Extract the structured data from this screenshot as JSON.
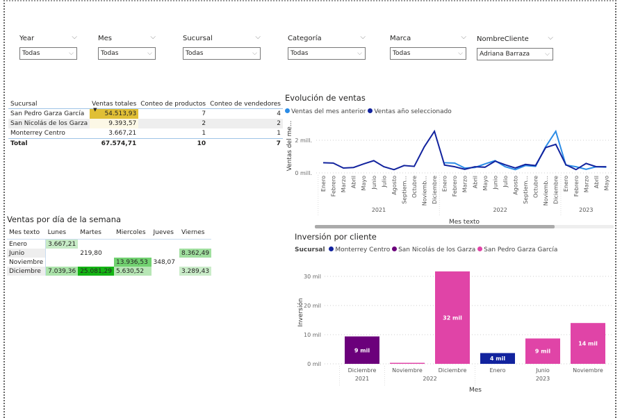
{
  "filters": [
    {
      "label": "Year",
      "value": "Todas"
    },
    {
      "label": "Mes",
      "value": "Todas"
    },
    {
      "label": "Sucursal",
      "value": "Todas"
    },
    {
      "label": "Categoría",
      "value": "Todas"
    },
    {
      "label": "Marca",
      "value": "Todas"
    },
    {
      "label": "NombreCliente",
      "value": "Adriana Barraza"
    }
  ],
  "sales_table": {
    "headers": [
      "Sucursal",
      "Ventas totales",
      "Conteo de productos",
      "Conteo de vendedores"
    ],
    "rows": [
      [
        "San Pedro Garza García",
        "54.513,93",
        "7",
        "4"
      ],
      [
        "San Nicolás de los Garza",
        "9.393,57",
        "2",
        "2"
      ],
      [
        "Monterrey Centro",
        "3.667,21",
        "1",
        "1"
      ]
    ],
    "total": [
      "Total",
      "67.574,71",
      "10",
      "7"
    ],
    "highlight_color": "#e0bf35"
  },
  "weekday_table": {
    "title": "Ventas por día de la semana",
    "headers": [
      "Mes texto",
      "Lunes",
      "Martes",
      "Miercoles",
      "Jueves",
      "Viernes"
    ],
    "rows": [
      [
        "Enero",
        "3.667,21",
        "",
        "",
        "",
        ""
      ],
      [
        "Junio",
        "",
        "219,80",
        "",
        "",
        "8.362,49"
      ],
      [
        "Noviembre",
        "",
        "",
        "13.936,53",
        "348,07",
        ""
      ],
      [
        "Diciembre",
        "7.039,36",
        "25.081,29",
        "5.630,52",
        "",
        "3.289,43"
      ]
    ]
  },
  "chart_data": [
    {
      "type": "line",
      "title": "Evolución de ventas",
      "xlabel": "Mes texto",
      "ylabel": "Ventas del me...",
      "yticks": [
        "0 mill.",
        "2 mill."
      ],
      "ylim": [
        0,
        3.1
      ],
      "unit": "millones",
      "grid": true,
      "legend_position": "top-left",
      "years": [
        {
          "label": "2021",
          "months": 12
        },
        {
          "label": "2022",
          "months": 12
        },
        {
          "label": "2023",
          "months": 5
        }
      ],
      "categories": [
        "Enero",
        "Febrero",
        "Marzo",
        "Abril",
        "Mayo",
        "Junio",
        "Julio",
        "Agosto",
        "Septiem...",
        "Octubre",
        "Noviemb...",
        "Diciembre",
        "Enero",
        "Febrero",
        "Marzo",
        "Abril",
        "Mayo",
        "Junio",
        "Julio",
        "Agosto",
        "Septiem...",
        "Octubre",
        "Noviemb...",
        "Diciembre",
        "Enero",
        "Febrero",
        "Marzo",
        "Abril",
        "Mayo"
      ],
      "series": [
        {
          "name": "Ventas del mes anterior",
          "color": "#2b8ce6",
          "values": [
            null,
            null,
            null,
            null,
            null,
            null,
            null,
            null,
            null,
            null,
            null,
            null,
            0.62,
            0.6,
            0.3,
            0.33,
            0.55,
            0.75,
            0.38,
            0.2,
            0.45,
            0.4,
            1.6,
            2.55,
            0.48,
            0.38,
            0.22,
            0.38,
            0.35
          ]
        },
        {
          "name": "Ventas año seleccionado",
          "color": "#12239e",
          "values": [
            0.62,
            0.6,
            0.3,
            0.33,
            0.55,
            0.75,
            0.38,
            0.2,
            0.45,
            0.4,
            1.6,
            2.55,
            0.48,
            0.38,
            0.22,
            0.38,
            0.35,
            0.72,
            0.5,
            0.3,
            0.52,
            0.45,
            1.55,
            1.75,
            0.5,
            0.2,
            0.58,
            0.38,
            0.38
          ]
        }
      ]
    },
    {
      "type": "bar",
      "title": "Inversión por cliente",
      "legend_title": "Sucursal",
      "legend_position": "top-left",
      "xlabel": "Mes",
      "ylabel": "Inversión",
      "yticks": [
        "0 mil",
        "10 mil",
        "20 mil",
        "30 mil"
      ],
      "ylim": [
        0,
        33
      ],
      "grid": true,
      "series": [
        {
          "name": "Monterrey Centro",
          "color": "#12239e"
        },
        {
          "name": "San Nicolás de los Garza",
          "color": "#6b007b"
        },
        {
          "name": "San Pedro Garza García",
          "color": "#e044a7"
        }
      ],
      "bars": [
        {
          "month": "Diciembre",
          "year": "2021",
          "series": "San Nicolás de los Garza",
          "value": 9.4,
          "label": "9 mil"
        },
        {
          "month": "Noviembre",
          "year": "2022",
          "series": "San Pedro Garza García",
          "value": 0.35,
          "label": ""
        },
        {
          "month": "Diciembre",
          "year": "2022",
          "series": "San Pedro Garza García",
          "value": 31.7,
          "label": "32 mil"
        },
        {
          "month": "Enero",
          "year": "2023",
          "series": "Monterrey Centro",
          "value": 3.7,
          "label": "4 mil"
        },
        {
          "month": "Junio",
          "year": "2023",
          "series": "San Pedro Garza García",
          "value": 8.7,
          "label": "9 mil"
        },
        {
          "month": "Noviembre",
          "year": "2023",
          "series": "San Pedro Garza García",
          "value": 14.0,
          "label": "14 mil"
        }
      ],
      "year_groups": [
        {
          "label": "2021",
          "count": 1
        },
        {
          "label": "2022",
          "count": 2
        },
        {
          "label": "2023",
          "count": 3
        }
      ]
    }
  ]
}
